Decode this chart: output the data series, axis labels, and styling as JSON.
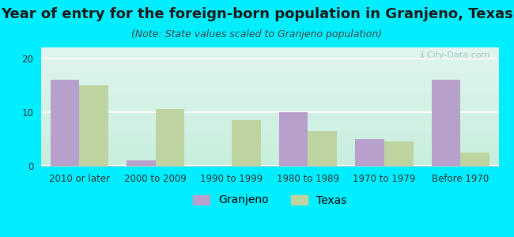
{
  "title": "Year of entry for the foreign-born population in Granjeno, Texas",
  "subtitle": "(Note: State values scaled to Granjeno population)",
  "categories": [
    "2010 or later",
    "2000 to 2009",
    "1990 to 1999",
    "1980 to 1989",
    "1970 to 1979",
    "Before 1970"
  ],
  "granjeno_values": [
    16,
    1,
    0,
    10,
    5,
    16
  ],
  "texas_values": [
    15,
    10.5,
    8.5,
    6.5,
    4.5,
    2.5
  ],
  "granjeno_color": "#b8a0cc",
  "texas_color": "#bdd4a0",
  "background_color": "#00eeff",
  "plot_bg_top": "#e0f5ee",
  "plot_bg_bottom": "#c8eedd",
  "grid_color": "#ffffff",
  "ylim": [
    0,
    22
  ],
  "yticks": [
    0,
    10,
    20
  ],
  "bar_width": 0.38,
  "title_fontsize": 13,
  "subtitle_fontsize": 9,
  "tick_fontsize": 8.5,
  "legend_fontsize": 10,
  "watermark_text": "ℹ City-Data.com"
}
